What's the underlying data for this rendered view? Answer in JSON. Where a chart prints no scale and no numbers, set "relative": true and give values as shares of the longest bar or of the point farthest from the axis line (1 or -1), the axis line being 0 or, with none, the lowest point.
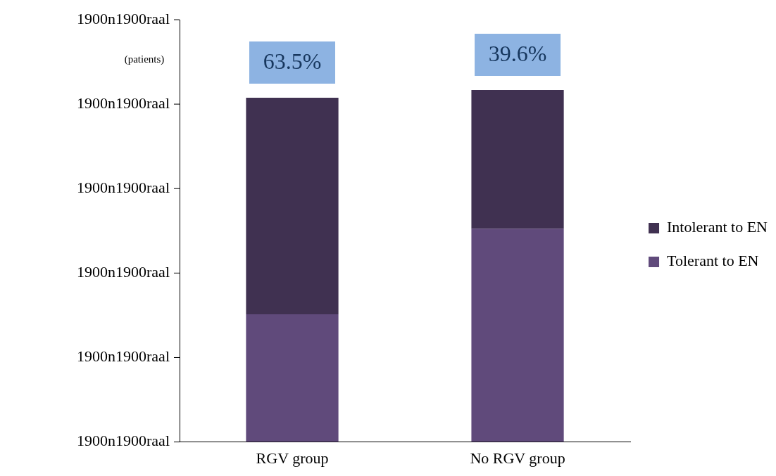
{
  "chart_data": {
    "type": "bar",
    "stacked": true,
    "relative": true,
    "ylabel": "(patients)",
    "categories": [
      "RGV group",
      "No RGV group"
    ],
    "series": [
      {
        "name": "Tolerant to EN",
        "color": "#604a7b",
        "values": [
          0.363,
          0.606
        ]
      },
      {
        "name": "Intolerant to EN",
        "color": "#403151",
        "values": [
          0.615,
          0.394
        ]
      }
    ],
    "annotations": [
      "63.5%",
      "39.6%",
      "1900n1900raal",
      "1900n1900raal",
      "1900n1900raal",
      "1900n1900raal",
      "1900n1900raal",
      "1900n1900raal"
    ],
    "legend": "right"
  }
}
